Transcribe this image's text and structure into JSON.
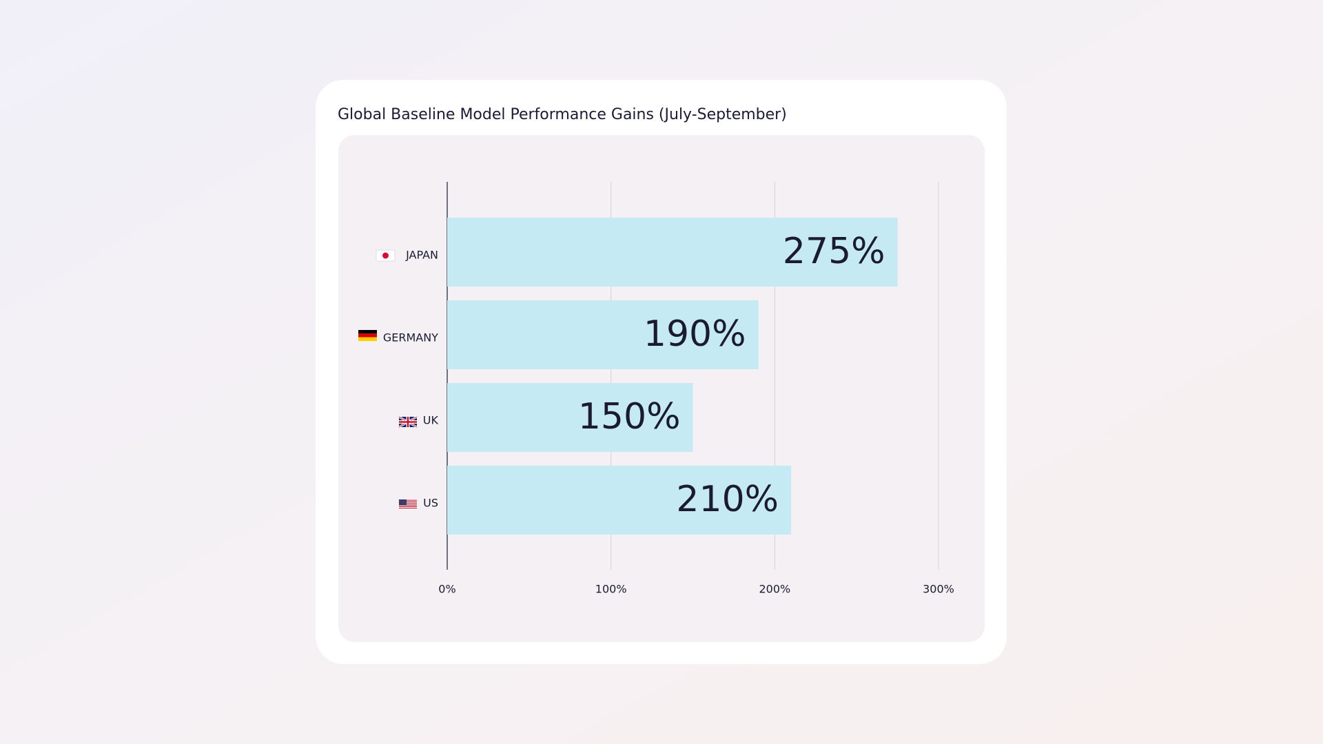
{
  "chart_data": {
    "type": "bar",
    "title": "Global Baseline Model Performance Gains (July-September)",
    "categories": [
      "JAPAN",
      "GERMANY",
      "UK",
      "US"
    ],
    "values": [
      275,
      190,
      150,
      210
    ],
    "value_labels": [
      "275%",
      "190%",
      "150%",
      "210%"
    ],
    "color": "#c5eaf3",
    "xlim": [
      0,
      300
    ],
    "xticks": [
      {
        "value": 0,
        "label": "0%"
      },
      {
        "value": 100,
        "label": "100%"
      },
      {
        "value": 200,
        "label": "200%"
      },
      {
        "value": 300,
        "label": "300%"
      }
    ],
    "grid": true
  }
}
